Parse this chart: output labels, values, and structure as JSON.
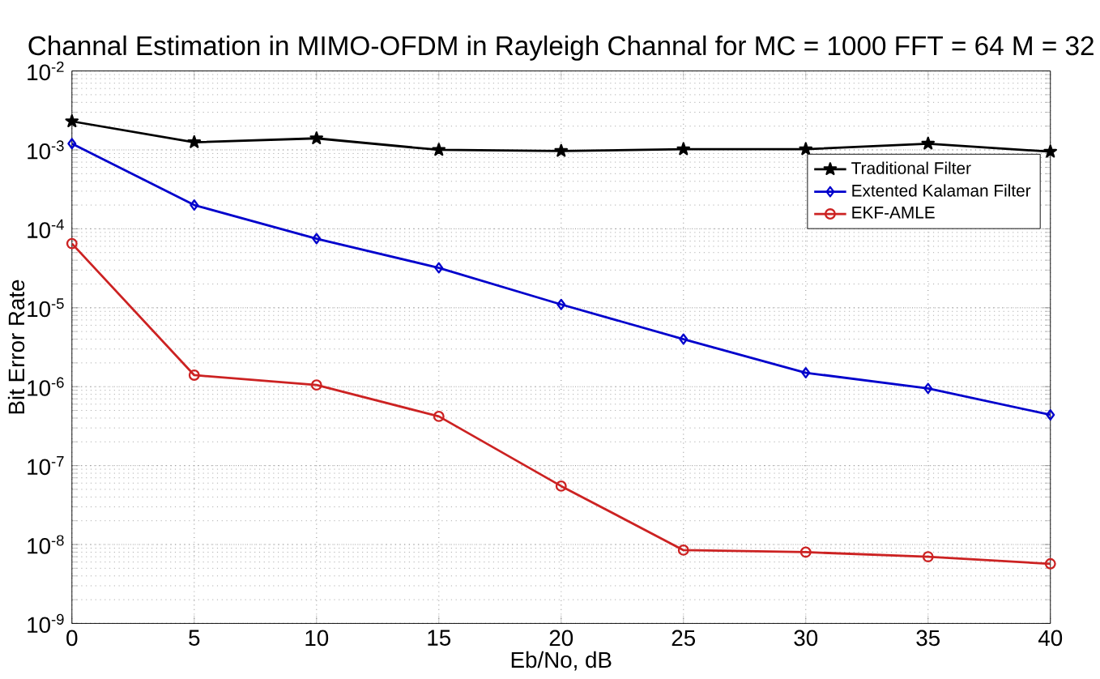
{
  "chart_data": {
    "type": "line",
    "title": "Channal Estimation in MIMO-OFDM in Rayleigh Channal for MC = 1000 FFT = 64 M = 32",
    "xlabel": "Eb/No, dB",
    "ylabel": "Bit Error Rate",
    "x": [
      0,
      5,
      10,
      15,
      20,
      25,
      30,
      35,
      40
    ],
    "series": [
      {
        "name": "Traditional Filter",
        "color": "#000000",
        "marker": "star",
        "values": [
          0.0023,
          0.00125,
          0.0014,
          0.001,
          0.00097,
          0.00102,
          0.00102,
          0.0012,
          0.00095
        ]
      },
      {
        "name": "Extented Kalaman Filter",
        "color": "#0000cc",
        "marker": "diamond",
        "values": [
          0.0012,
          0.0002,
          7.5e-05,
          3.2e-05,
          1.1e-05,
          4e-06,
          1.5e-06,
          9.5e-07,
          4.4e-07
        ]
      },
      {
        "name": "EKF-AMLE",
        "color": "#cc2222",
        "marker": "circle",
        "values": [
          6.5e-05,
          1.4e-06,
          1.05e-06,
          4.2e-07,
          5.5e-08,
          8.5e-09,
          8e-09,
          7e-09,
          5.7e-09
        ]
      }
    ],
    "log": "y",
    "xlim": [
      0,
      40
    ],
    "ylim": [
      1e-09,
      0.01
    ],
    "xticks": [
      0,
      5,
      10,
      15,
      20,
      25,
      30,
      35,
      40
    ],
    "yticks": [
      {
        "value": 1e-09,
        "label": "10$^{-9}$"
      },
      {
        "value": 1e-08,
        "label": "10$^{-8}$"
      },
      {
        "value": 1e-07,
        "label": "10$^{-7}$"
      },
      {
        "value": 1e-06,
        "label": "10$^{-6}$"
      },
      {
        "value": 1e-05,
        "label": "10$^{-5}$"
      },
      {
        "value": 0.0001,
        "label": "10$^{-4}$"
      },
      {
        "value": 0.001,
        "label": "10$^{-3}$"
      },
      {
        "value": 0.01,
        "label": "10$^{-2}$"
      }
    ],
    "grid": true,
    "legend": "top right",
    "line_style": "solid"
  }
}
